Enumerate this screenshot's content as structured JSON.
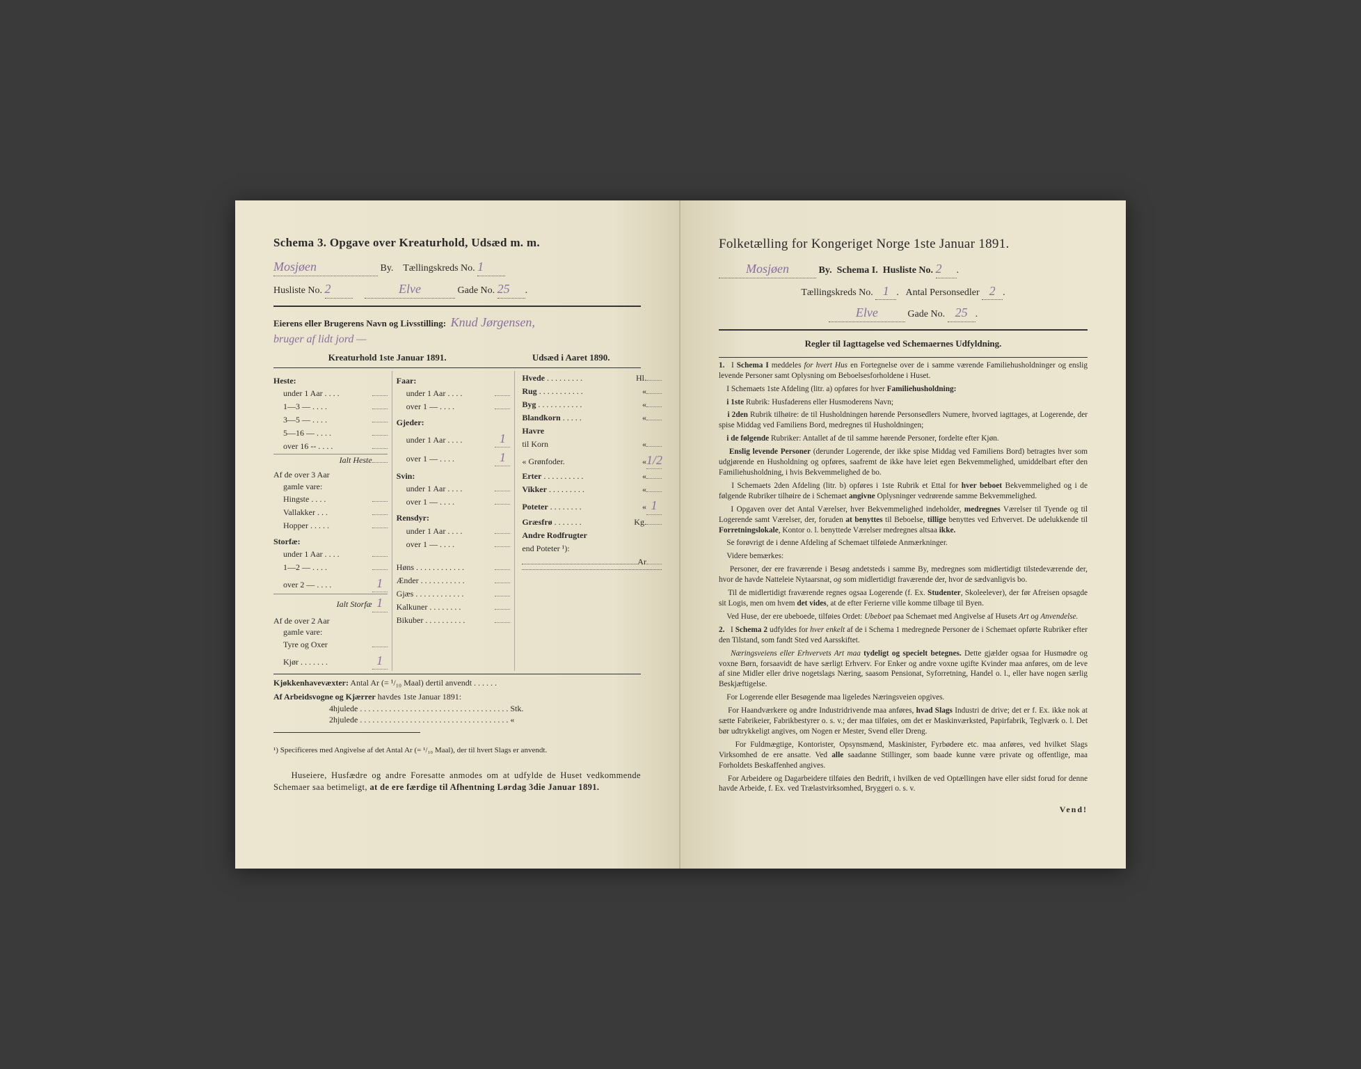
{
  "left": {
    "title": "Schema 3.  Opgave over Kreaturhold, Udsæd m. m.",
    "by_label": "By.",
    "by_hw": "Mosjøen",
    "tk_label": "Tællingskreds No.",
    "tk_hw": "1",
    "husliste_label": "Husliste No.",
    "husliste_hw": "2",
    "gade_mid_hw": "Elve",
    "gade_label": "Gade No.",
    "gade_hw": "25",
    "owner_label": "Eierens eller Brugerens Navn og Livsstilling:",
    "owner_hw": "Knud Jørgensen,",
    "owner_hw2": "bruger af lidt jord —",
    "col_left_head": "Kreaturhold 1ste Januar 1891.",
    "col_right_head": "Udsæd i Aaret 1890.",
    "heste": {
      "head": "Heste:",
      "rows": [
        "under 1 Aar . . . .",
        "1—3  —  . . . .",
        "3—5  —  . . . .",
        "5—16  —  . . . .",
        "over 16 --   . . . ."
      ],
      "ialt": "Ialt Heste",
      "sub_head": "Af de over 3 Aar",
      "sub_head2": "gamle vare:",
      "sub_rows": [
        "Hingste . . . .",
        "Vallakker . . .",
        "Hopper . . . . ."
      ]
    },
    "storfae": {
      "head": "Storfæ:",
      "rows": [
        "under 1 Aar . . . .",
        "1—2  —  . . . .",
        "over 2  —  . . . ."
      ],
      "over2_val": "1",
      "ialt": "Ialt Storfæ",
      "ialt_val": "1",
      "sub_head": "Af de over 2 Aar",
      "sub_head2": "gamle vare:",
      "sub_rows": [
        "Tyre og Oxer",
        "Kjør . . . . . . ."
      ],
      "kjor_val": "1"
    },
    "faar": {
      "head": "Faar:",
      "rows": [
        "under 1 Aar . . . .",
        "over 1  —  . . . ."
      ]
    },
    "gjeder": {
      "head": "Gjeder:",
      "rows": [
        "under 1 Aar . . . .",
        "over 1  —  . . . ."
      ],
      "u1_val": "1",
      "o1_val": "1"
    },
    "svin": {
      "head": "Svin:",
      "rows": [
        "under 1 Aar . . . .",
        "over 1  —  . . . ."
      ]
    },
    "rensdyr": {
      "head": "Rensdyr:",
      "rows": [
        "under 1 Aar . . . .",
        "over 1  —  . . . ."
      ]
    },
    "poultry": [
      "Høns . . . . . . . . . . . .",
      "Ænder . . . . . . . . . . .",
      "Gjæs . . . . . . . . . . . .",
      "Kalkuner . . . . . . . .",
      "Bikuber . . . . . . . . . ."
    ],
    "udsaed": {
      "rows": [
        {
          "l": "Hvede",
          "u": "Hl."
        },
        {
          "l": "Rug",
          "u": "«"
        },
        {
          "l": "Byg",
          "u": "«"
        },
        {
          "l": "Blandkorn",
          "u": "«"
        },
        {
          "l": "Havre",
          "u": ""
        },
        {
          "l": "  til Korn",
          "u": "«"
        },
        {
          "l": "  «  Grønfoder.",
          "u": "«",
          "v": "1/2"
        },
        {
          "l": "Erter",
          "u": "«"
        },
        {
          "l": "Vikker",
          "u": "«"
        },
        {
          "l": "Poteter",
          "u": "«",
          "v": "1"
        },
        {
          "l": "Græsfrø",
          "u": "Kg."
        },
        {
          "l": "Andre Rodfrugter",
          "u": ""
        },
        {
          "l": "  end Poteter ¹):",
          "u": ""
        },
        {
          "l": "",
          "u": "Ar"
        }
      ]
    },
    "kjokken_label": "Kjøkkenhavevæxter:",
    "kjokken_text": "Antal Ar (= ¹/₁₀ Maal) dertil anvendt . . . . . .",
    "arbeids_label": "Af Arbeidsvogne og Kjærrer",
    "arbeids_text": "havdes 1ste Januar 1891:",
    "hjul4": "4hjulede . . . . . . . . . . . . . . . . . . . . . . . . . . . . . . . . . . . . Stk.",
    "hjul2": "2hjulede . . . . . . . . . . . . . . . . . . . . . . . . . . . . . . . . . . . .  «",
    "footnote": "¹) Specificeres med Angivelse af det Antal Ar (= ¹/₁₀ Maal), der til hvert Slags er anvendt.",
    "bottom": "Huseiere, Husfædre og andre Foresatte anmodes om at udfylde de Huset vedkommende Schemaer saa betimeligt, at de ere færdige til Afhentning Lørdag 3die Januar 1891."
  },
  "right": {
    "title": "Folketælling for Kongeriget Norge 1ste Januar 1891.",
    "by_hw": "Mosjøen",
    "by_label": "By.",
    "schema_label": "Schema I.",
    "husliste_label": "Husliste No.",
    "husliste_hw": "2",
    "tk_label": "Tællingskreds No.",
    "tk_hw": "1",
    "antal_label": "Antal Personsedler",
    "antal_hw": "2",
    "gade_hw": "Elve",
    "gade_label": "Gade No.",
    "gade_no_hw": "25",
    "rules_title": "Regler til Iagttagelse ved Schemaernes Udfyldning.",
    "rules": [
      "I <b>Schema I</b> meddeles <i>for hvert Hus</i> en Fortegnelse over de i samme værende Familiehusholdninger og enslig levende Personer samt Oplysning om Beboelsesforholdene i Huset.",
      "I Schemaets 1ste Afdeling (litr. a) opføres for hver <b>Familiehusholdning:</b>",
      "<b>i 1ste</b> Rubrik: Husfaderens eller Husmoderens Navn;",
      "<b>i 2den</b> Rubrik tilhøire: de til Husholdningen hørende Personsedlers Numere, hvorved iagttages, at Logerende, der spise Middag ved Familiens Bord, medregnes til Husholdningen;",
      "<b>i de følgende</b> Rubriker: Antallet af de til samme hørende Personer, fordelte efter Kjøn.",
      "<b>Enslig levende Personer</b> (derunder Logerende, der ikke spise Middag ved Familiens Bord) betragtes hver som udgjørende en Husholdning og opføres, saafremt de ikke have leiet egen Bekvemmelighed, umiddelbart efter den Familiehusholdning, i hvis Bekvemmelighed de bo.",
      "I Schemaets 2den Afdeling (litr. b) opføres i 1ste Rubrik et Ettal for <b>hver beboet</b> Bekvemmelighed og i de følgende Rubriker tilhøire de i Schemaet <b>angivne</b> Oplysninger vedrørende samme Bekvemmelighed.",
      "I Opgaven over det Antal Værelser, hver Bekvemmelighed indeholder, <b>medregnes</b> Værelser til Tyende og til Logerende samt Værelser, der, foruden <b>at benyttes</b> til Beboelse, <b>tillige</b> benyttes ved Erhvervet. De udelukkende til <b>Forretningslokale</b>, Kontor o. l. benyttede Værelser medregnes altsaa <b>ikke.</b>",
      "Se forøvrigt de i denne Afdeling af Schemaet tilføiede Anmærkninger.",
      "Videre bemærkes:",
      "Personer, der ere fraværende i Besøg andetsteds i samme By, medregnes som midlertidigt tilstedeværende der, hvor de havde Natteleie Nytaarsnat, <i>og</i> som midlertidigt fraværende der, hvor de sædvanligvis bo.",
      "Til de midlertidigt fraværende regnes ogsaa Logerende (f. Ex. <b>Studenter</b>, Skoleelever), der før Afreisen opsagde sit Logis, men om hvem <b>det vides</b>, at de efter Ferierne ville komme tilbage til Byen.",
      "Ved Huse, der ere ubeboede, tilføies Ordet: <i>Ubeboet</i> paa Schemaet med Angivelse af Husets <i>Art og Anvendelse.</i>",
      "I <b>Schema 2</b> udfyldes for <i>hver enkelt</i> af de i Schema 1 medregnede Personer de i Schemaet opførte Rubriker efter den Tilstand, som fandt Sted ved Aarsskiftet.",
      "<i>Næringsveiens eller Erhvervets Art maa</i> <b>tydeligt og specielt betegnes.</b> Dette gjælder ogsaa for Husmødre og voxne Børn, forsaavidt de have særligt Erhverv. For Enker og andre voxne ugifte Kvinder maa anføres, om de leve af sine Midler eller drive nogetslags Næring, saasom Pensionat, Syforretning, Handel o. l., eller have nogen særlig Beskjæftigelse.",
      "For Logerende eller Besøgende maa ligeledes Næringsveien opgives.",
      "For Haandværkere og andre Industridrivende maa anføres, <b>hvad Slags</b> Industri de drive; det er f. Ex. ikke nok at sætte Fabrikeier, Fabrikbestyrer o. s. v.; der maa tilføies, om det er Maskinværksted, Papirfabrik, Teglværk o. l. Det bør udtrykkeligt angives, om Nogen er Mester, Svend eller Dreng.",
      "For Fuldmægtige, Kontorister, Opsynsmænd, Maskinister, Fyrbødere etc. maa anføres, ved hvilket Slags Virksomhed de ere ansatte. Ved <b>alle</b> saadanne Stillinger, som baade kunne være private og offentlige, maa Forholdets Beskaffenhed angives.",
      "For Arbeidere og Dagarbeidere tilføies den Bedrift, i hvilken de ved Optællingen have eller sidst forud for denne havde Arbeide, f. Ex. ved Trælastvirksomhed, Bryggeri o. s. v."
    ],
    "vend": "Vend!"
  }
}
